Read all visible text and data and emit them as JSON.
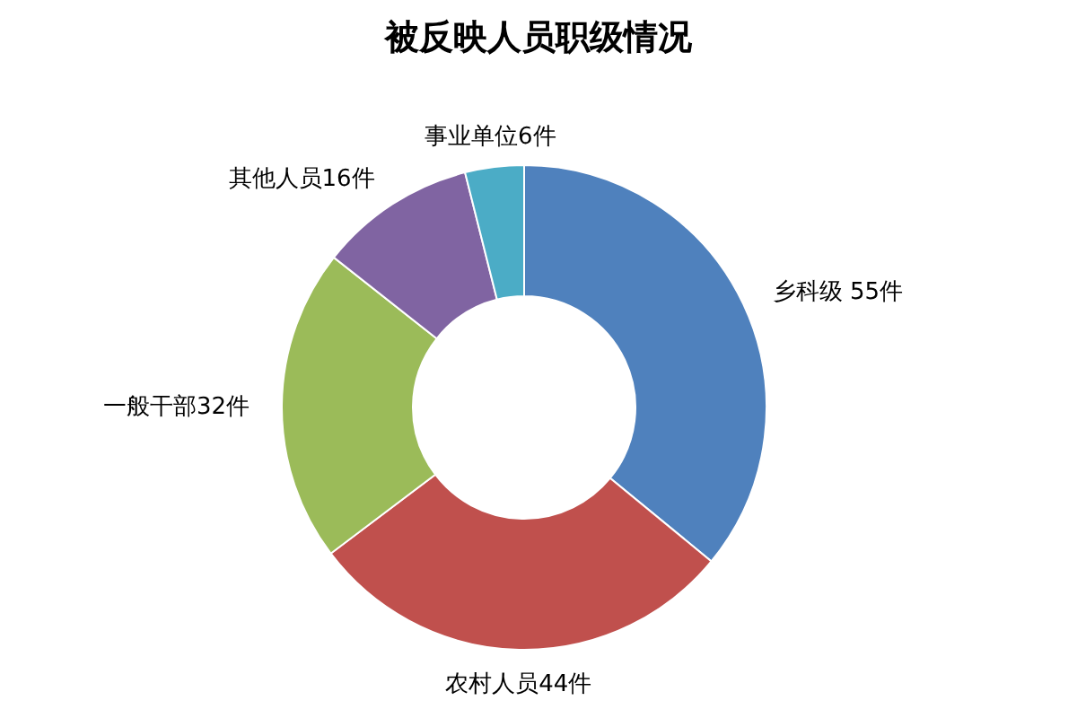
{
  "chart_data": {
    "type": "donut",
    "title": "被反映人员职级情况",
    "categories": [
      "乡科级 55件",
      "农村人员44件",
      "一般干部32件",
      "其他人员16件",
      "事业单位6件"
    ],
    "values": [
      55,
      44,
      32,
      16,
      6
    ],
    "colors": [
      "#4f81bd",
      "#c0504d",
      "#9bbb59",
      "#8064a2",
      "#4bacc6"
    ]
  }
}
